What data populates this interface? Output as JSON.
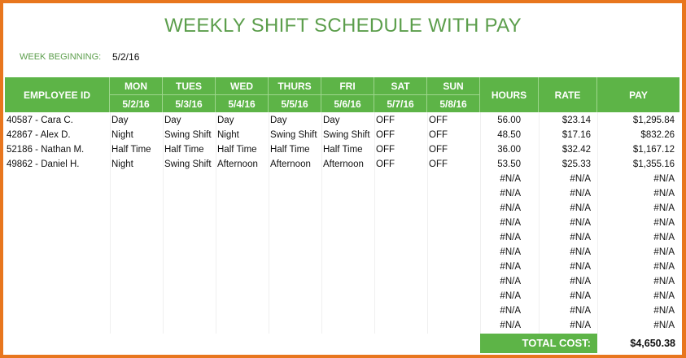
{
  "title": "WEEKLY SHIFT SCHEDULE WITH PAY",
  "week_beginning": {
    "label": "WEEK BEGINNING:",
    "value": "5/2/16"
  },
  "headers": {
    "employee": "EMPLOYEE ID",
    "hours": "HOURS",
    "rate": "RATE",
    "pay": "PAY",
    "days": [
      {
        "day": "MON",
        "date": "5/2/16"
      },
      {
        "day": "TUES",
        "date": "5/3/16"
      },
      {
        "day": "WED",
        "date": "5/4/16"
      },
      {
        "day": "THURS",
        "date": "5/5/16"
      },
      {
        "day": "FRI",
        "date": "5/6/16"
      },
      {
        "day": "SAT",
        "date": "5/7/16"
      },
      {
        "day": "SUN",
        "date": "5/8/16"
      }
    ]
  },
  "rows": [
    {
      "employee": "40587 - Cara C.",
      "shifts": [
        "Day",
        "Day",
        "Day",
        "Day",
        "Day",
        "OFF",
        "OFF"
      ],
      "hours": "56.00",
      "rate": "$23.14",
      "pay": "$1,295.84"
    },
    {
      "employee": "42867 - Alex D.",
      "shifts": [
        "Night",
        "Swing Shift",
        "Night",
        "Swing Shift",
        "Swing Shift",
        "OFF",
        "OFF"
      ],
      "hours": "48.50",
      "rate": "$17.16",
      "pay": "$832.26"
    },
    {
      "employee": "52186 - Nathan M.",
      "shifts": [
        "Half Time",
        "Half Time",
        "Half Time",
        "Half Time",
        "Half Time",
        "OFF",
        "OFF"
      ],
      "hours": "36.00",
      "rate": "$32.42",
      "pay": "$1,167.12"
    },
    {
      "employee": "49862 - Daniel H.",
      "shifts": [
        "Night",
        "Swing Shift",
        "Afternoon",
        "Afternoon",
        "Afternoon",
        "OFF",
        "OFF"
      ],
      "hours": "53.50",
      "rate": "$25.33",
      "pay": "$1,355.16"
    }
  ],
  "empty_row_value": "#N/A",
  "empty_row_count": 11,
  "total": {
    "label": "TOTAL COST:",
    "value": "$4,650.38"
  },
  "colors": {
    "accent": "#5db447",
    "title": "#5c9e4c",
    "frame": "#e8761e"
  }
}
